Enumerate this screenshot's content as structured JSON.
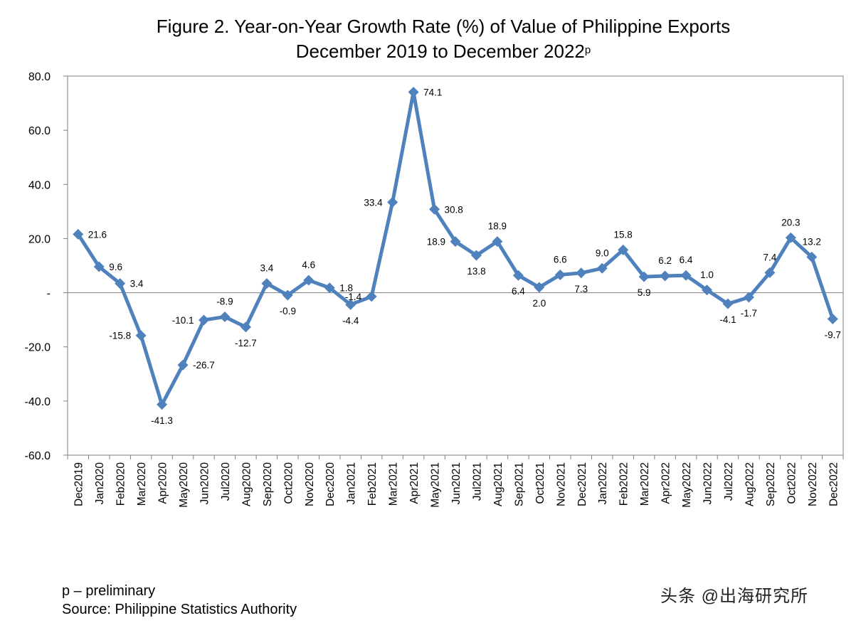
{
  "chart_data": {
    "type": "line",
    "title_line1": "Figure 2. Year-on-Year Growth Rate (%) of Value of Philippine Exports",
    "title_line2": "December 2019 to December 2022",
    "title_suffix": "p",
    "categories": [
      "Dec2019",
      "Jan2020",
      "Feb2020",
      "Mar2020",
      "Apr2020",
      "May2020",
      "Jun2020",
      "Jul2020",
      "Aug2020",
      "Sep2020",
      "Oct2020",
      "Nov2020",
      "Dec2020",
      "Jan2021",
      "Feb2021",
      "Mar2021",
      "Apr2021",
      "May2021",
      "Jun2021",
      "Jul2021",
      "Aug2021",
      "Sep2021",
      "Oct2021",
      "Nov2021",
      "Dec2021",
      "Jan2022",
      "Feb2022",
      "Mar2022",
      "Apr2022",
      "May2022",
      "Jun2022",
      "Jul2022",
      "Aug2022",
      "Sep2022",
      "Oct2022",
      "Nov2022",
      "Dec2022"
    ],
    "series": [
      {
        "values": [
          21.6,
          9.6,
          3.4,
          -15.8,
          -41.3,
          -26.7,
          -10.1,
          -8.9,
          -12.7,
          3.4,
          -0.9,
          4.6,
          1.8,
          -4.4,
          -1.4,
          33.4,
          74.1,
          30.8,
          18.9,
          13.8,
          18.9,
          6.4,
          2.0,
          6.6,
          7.3,
          9.0,
          15.8,
          5.9,
          6.2,
          6.4,
          1.0,
          -4.1,
          -1.7,
          7.4,
          20.3,
          13.2,
          -9.7
        ],
        "labels": [
          "21.6",
          "9.6",
          "3.4",
          "-15.8",
          "-41.3",
          "-26.7",
          "-10.1",
          "-8.9",
          "-12.7",
          "3.4",
          "-0.9",
          "4.6",
          "1.8",
          "-4.4",
          "-1.4",
          "33.4",
          "74.1",
          "30.8",
          "18.9",
          "13.8",
          "18.9",
          "6.4",
          "2.0",
          "6.6",
          "7.3",
          "9.0",
          "15.8",
          "5.9",
          "6.2",
          "6.4",
          "1.0",
          "-4.1",
          "-1.7",
          "7.4",
          "20.3",
          "13.2",
          "-9.7"
        ],
        "color": "#4f81bd"
      }
    ],
    "ylim": [
      -60,
      80
    ],
    "yticks": [
      80,
      60,
      40,
      20,
      0,
      -20,
      -40,
      -60
    ],
    "ytick_labels": [
      "80.0",
      "60.0",
      "40.0",
      "20.0",
      "-",
      "-20.0",
      "-40.0",
      "-60.0"
    ],
    "xlabel": "",
    "ylabel": "",
    "grid": false,
    "legend": "none"
  },
  "footnotes": {
    "preliminary": "p – preliminary",
    "source": "Source:  Philippine Statistics Authority"
  },
  "watermark": "头条 @出海研究所"
}
